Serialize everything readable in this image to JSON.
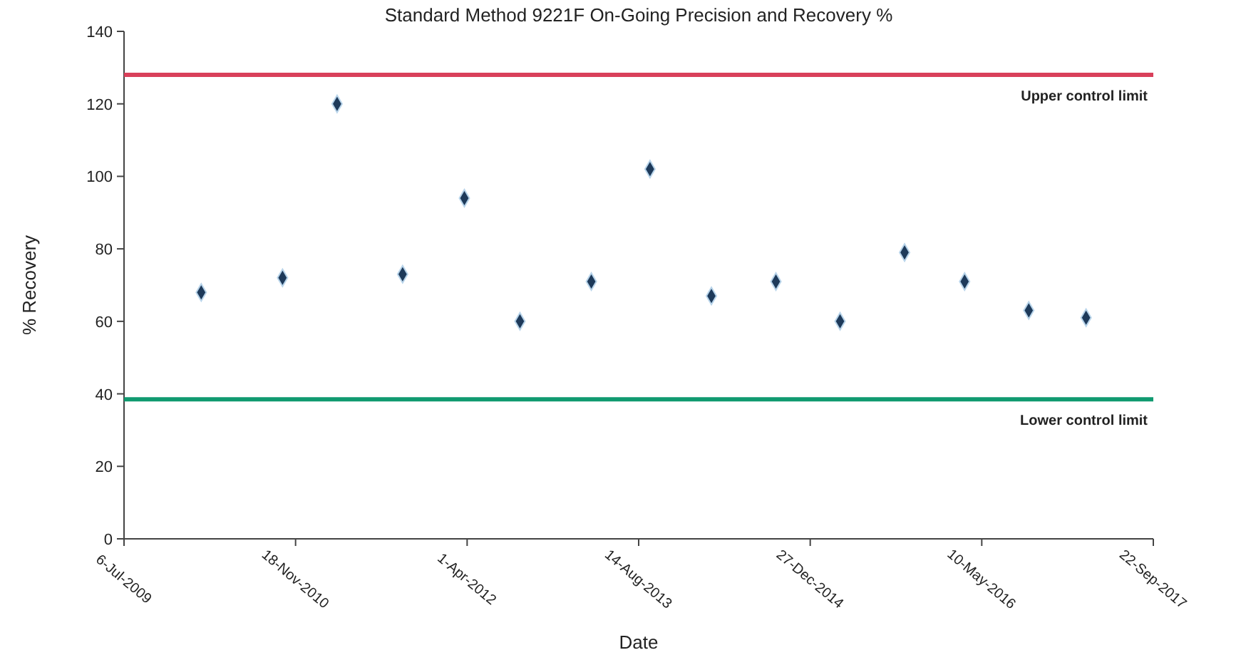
{
  "chart_data": {
    "type": "scatter",
    "title": "Standard Method 9221F On-Going Precision and Recovery %",
    "xlabel": "Date",
    "ylabel": "% Recovery",
    "x": [
      "2010-02-16",
      "2010-10-11",
      "2011-03-19",
      "2011-09-26",
      "2012-03-24",
      "2012-09-02",
      "2013-03-29",
      "2013-09-16",
      "2014-03-14",
      "2014-09-18",
      "2015-03-24",
      "2015-09-28",
      "2016-03-21",
      "2016-09-24",
      "2017-03-10"
    ],
    "values": [
      68,
      72,
      120,
      73,
      94,
      60,
      71,
      102,
      67,
      71,
      60,
      79,
      71,
      63,
      61
    ],
    "color": "#1e3a5a",
    "marker": "diamond",
    "xlim": [
      "2009-07-06",
      "2017-09-22"
    ],
    "xticks": [
      {
        "value": "2009-07-06",
        "label": "6-Jul-2009"
      },
      {
        "value": "2010-11-18",
        "label": "18-Nov-2010"
      },
      {
        "value": "2012-04-01",
        "label": "1-Apr-2012"
      },
      {
        "value": "2013-08-14",
        "label": "14-Aug-2013"
      },
      {
        "value": "2014-12-27",
        "label": "27-Dec-2014"
      },
      {
        "value": "2016-05-10",
        "label": "10-May-2016"
      },
      {
        "value": "2017-09-22",
        "label": "22-Sep-2017"
      }
    ],
    "ylim": [
      0,
      140
    ],
    "yticks": [
      0,
      20,
      40,
      60,
      80,
      100,
      120,
      140
    ],
    "ref_lines": [
      {
        "axis": "y",
        "value": 128,
        "label": "Upper control limit",
        "color": "#d9405a"
      },
      {
        "axis": "y",
        "value": 38.5,
        "label": "Lower control limit",
        "color": "#109a70"
      }
    ],
    "grid": false
  }
}
